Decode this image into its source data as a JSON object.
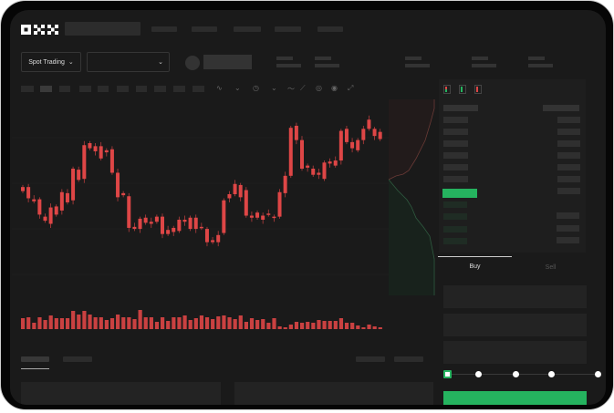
{
  "header": {
    "logo": "OKX"
  },
  "toolbar": {
    "market_selector": "Spot Trading",
    "pair_selector": ""
  },
  "chart_icons": [
    "indicator-icon",
    "indicator-icon",
    "time-icon",
    "dropdown-icon",
    "line-icon",
    "draw-icon",
    "camera-icon",
    "settings-icon",
    "fullscreen-icon"
  ],
  "orderbook": {
    "view_icons": [
      "both-sides-icon",
      "bids-icon",
      "asks-icon"
    ]
  },
  "trade": {
    "tabs": [
      "Buy",
      "Sell"
    ],
    "active_tab": "Buy",
    "slider_value": 0
  },
  "colors": {
    "up": "#25b35f",
    "down": "#de4646",
    "background": "#1a1a1a",
    "panel": "#1e1e1e"
  },
  "chart_data": {
    "type": "candlestick",
    "candles": [
      [
        97,
        93
      ],
      [
        97,
        86
      ],
      [
        85,
        83
      ],
      [
        85,
        70
      ],
      [
        68,
        64
      ],
      [
        77,
        61
      ],
      [
        78,
        70
      ],
      [
        92,
        74
      ],
      [
        91,
        82
      ],
      [
        115,
        84
      ],
      [
        114,
        104
      ],
      [
        138,
        105
      ],
      [
        140,
        135
      ],
      [
        137,
        132
      ],
      [
        137,
        125
      ],
      [
        133,
        131
      ],
      [
        134,
        111
      ],
      [
        111,
        87
      ],
      [
        91,
        89
      ],
      [
        88,
        57
      ],
      [
        58,
        56
      ],
      [
        66,
        56
      ],
      [
        67,
        62
      ],
      [
        63,
        61
      ],
      [
        68,
        63
      ],
      [
        68,
        51
      ],
      [
        55,
        51
      ],
      [
        57,
        53
      ],
      [
        65,
        54
      ],
      [
        65,
        63
      ],
      [
        67,
        56
      ],
      [
        67,
        56
      ],
      [
        58,
        57
      ],
      [
        56,
        43
      ],
      [
        45,
        43
      ],
      [
        50,
        43
      ],
      [
        84,
        52
      ],
      [
        90,
        86
      ],
      [
        100,
        90
      ],
      [
        99,
        87
      ],
      [
        94,
        69
      ],
      [
        69,
        67
      ],
      [
        72,
        67
      ],
      [
        69,
        65
      ],
      [
        71,
        70
      ],
      [
        68,
        67
      ],
      [
        92,
        68
      ],
      [
        108,
        91
      ],
      [
        155,
        108
      ],
      [
        157,
        143
      ],
      [
        143,
        115
      ],
      [
        118,
        116
      ],
      [
        115,
        109
      ],
      [
        111,
        109
      ],
      [
        121,
        105
      ],
      [
        122,
        120
      ],
      [
        123,
        118
      ],
      [
        152,
        123
      ],
      [
        154,
        141
      ],
      [
        141,
        135
      ],
      [
        143,
        133
      ],
      [
        154,
        143
      ],
      [
        163,
        154
      ],
      [
        154,
        147
      ],
      [
        151,
        144
      ]
    ],
    "volume": [
      12,
      13,
      7,
      13,
      10,
      15,
      12,
      12,
      12,
      20,
      16,
      20,
      16,
      13,
      13,
      10,
      12,
      16,
      13,
      13,
      11,
      21,
      13,
      13,
      8,
      13,
      9,
      13,
      13,
      15,
      10,
      12,
      15,
      13,
      11,
      14,
      15,
      13,
      11,
      15,
      8,
      12,
      10,
      11,
      7,
      12,
      3,
      2,
      5,
      8,
      7,
      8,
      7,
      10,
      9,
      9,
      9,
      12,
      7,
      7,
      4,
      2,
      5,
      3,
      2
    ]
  }
}
